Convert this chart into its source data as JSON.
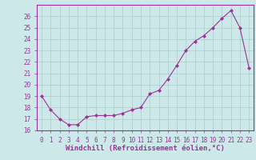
{
  "x": [
    0,
    1,
    2,
    3,
    4,
    5,
    6,
    7,
    8,
    9,
    10,
    11,
    12,
    13,
    14,
    15,
    16,
    17,
    18,
    19,
    20,
    21,
    22,
    23
  ],
  "y": [
    19.0,
    17.8,
    17.0,
    16.5,
    16.5,
    17.2,
    17.3,
    17.3,
    17.3,
    17.5,
    17.8,
    18.0,
    19.2,
    19.5,
    20.5,
    21.7,
    23.0,
    23.8,
    24.3,
    25.0,
    25.8,
    26.5,
    25.0,
    21.5
  ],
  "xlim": [
    -0.5,
    23.5
  ],
  "ylim": [
    16,
    27
  ],
  "yticks": [
    16,
    17,
    18,
    19,
    20,
    21,
    22,
    23,
    24,
    25,
    26
  ],
  "xticks": [
    0,
    1,
    2,
    3,
    4,
    5,
    6,
    7,
    8,
    9,
    10,
    11,
    12,
    13,
    14,
    15,
    16,
    17,
    18,
    19,
    20,
    21,
    22,
    23
  ],
  "xlabel": "Windchill (Refroidissement éolien,°C)",
  "line_color": "#993399",
  "marker": "D",
  "marker_size": 2,
  "bg_color": "#cce8e8",
  "grid_color": "#aacaca",
  "spine_color": "#993399"
}
